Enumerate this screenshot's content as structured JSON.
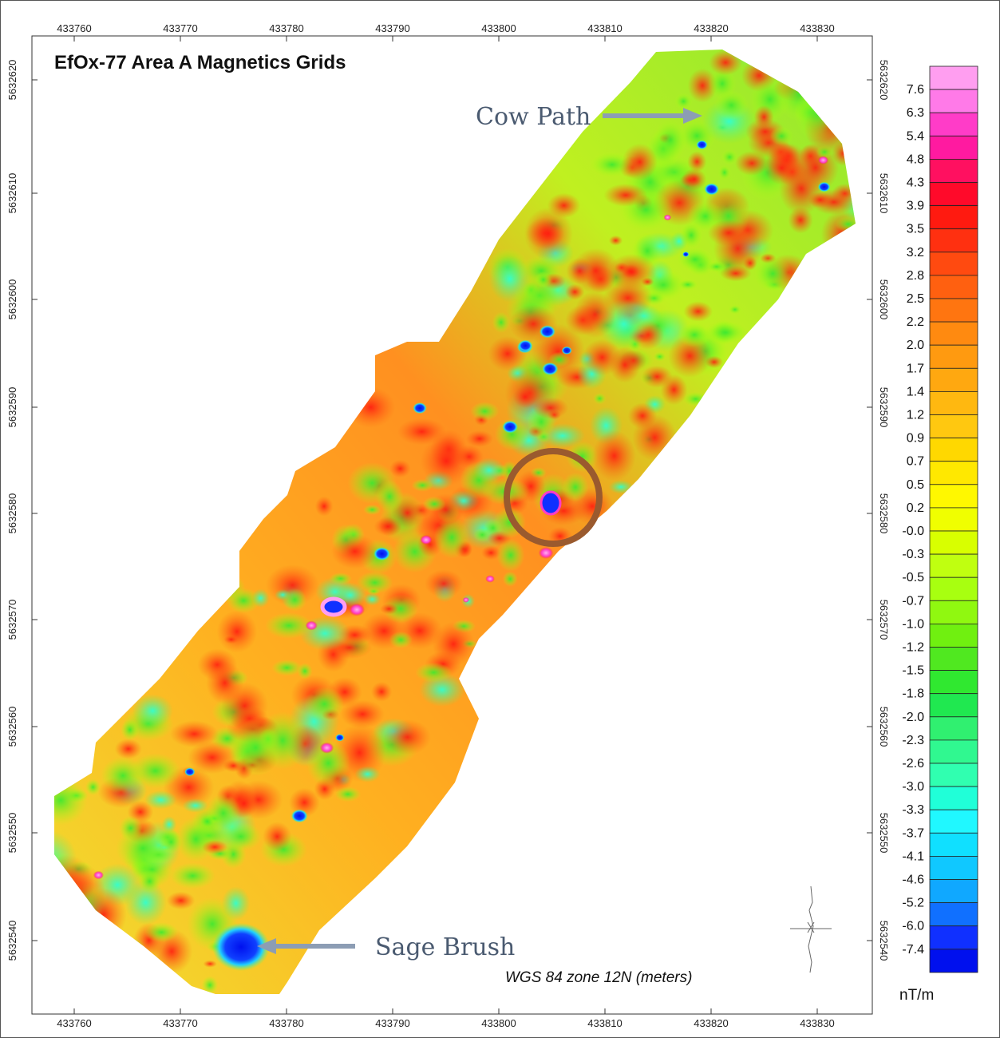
{
  "map": {
    "title": "EfOx-77 Area A Magnetics Grids",
    "crs": "WGS 84 zone 12N (meters)",
    "unit": "nT/m",
    "easting_ticks": [
      "433760",
      "433770",
      "433780",
      "433790",
      "433800",
      "433810",
      "433820",
      "433830"
    ],
    "northing_ticks": [
      "5632620",
      "5632610",
      "5632600",
      "5632590",
      "5632580",
      "5632570",
      "5632560",
      "5632550",
      "5632540"
    ],
    "annotations": {
      "cow_path": "Cow Path",
      "sage_brush": "Sage Brush"
    },
    "colors": {
      "annotation_text": "#4a5a70",
      "arrow": "#8c9db4",
      "circle": "#9a5a2e"
    }
  },
  "legend": {
    "labels": [
      "7.6",
      "6.3",
      "5.4",
      "4.8",
      "4.3",
      "3.9",
      "3.5",
      "3.2",
      "2.8",
      "2.5",
      "2.2",
      "2.0",
      "1.7",
      "1.4",
      "1.2",
      "0.9",
      "0.7",
      "0.5",
      "0.2",
      "-0.0",
      "-0.3",
      "-0.5",
      "-0.7",
      "-1.0",
      "-1.2",
      "-1.5",
      "-1.8",
      "-2.0",
      "-2.3",
      "-2.6",
      "-3.0",
      "-3.3",
      "-3.7",
      "-4.1",
      "-4.6",
      "-5.2",
      "-6.0",
      "-7.4"
    ],
    "colors": [
      "#ff9ef0",
      "#ff7ae8",
      "#ff3cc8",
      "#ff1aa0",
      "#ff1060",
      "#ff0a2a",
      "#ff1a10",
      "#ff3010",
      "#ff4a10",
      "#ff6010",
      "#ff7510",
      "#ff8a10",
      "#ff9a10",
      "#ffa810",
      "#ffb810",
      "#ffc810",
      "#ffd800",
      "#ffe800",
      "#fff800",
      "#f0ff00",
      "#d8ff00",
      "#c0ff10",
      "#a8ff10",
      "#90f810",
      "#70f010",
      "#50e820",
      "#30e830",
      "#20e850",
      "#30f070",
      "#30f890",
      "#30ffb0",
      "#20ffd8",
      "#20f8ff",
      "#10e0ff",
      "#10c8ff",
      "#10a8ff",
      "#1070ff",
      "#1030ff",
      "#0010ee"
    ]
  }
}
